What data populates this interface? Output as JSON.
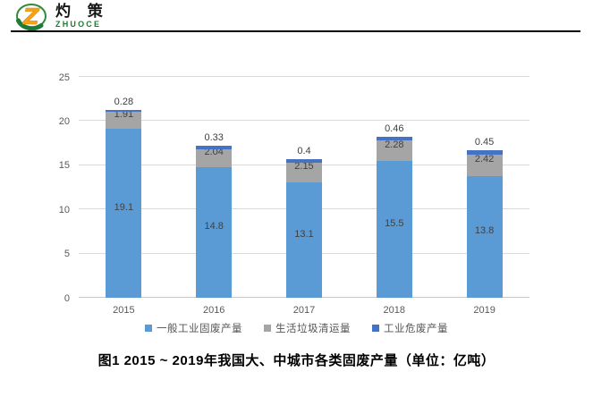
{
  "logo": {
    "cn": "灼 策",
    "en": "ZHUOCE"
  },
  "caption": "图1  2015 ~ 2019年我国大、中城市各类固废产量（单位：亿吨）",
  "colors": {
    "series_general": "#5B9BD5",
    "series_household": "#A5A5A5",
    "series_hazardous": "#4472C4",
    "gridline": "#D9D9D9",
    "axis_text": "#595959",
    "data_label": "#404040",
    "logo_green": "#1E7A34",
    "logo_orange": "#F5A21B",
    "divider": "#000000"
  },
  "chart_data": {
    "type": "bar",
    "stacked": true,
    "title": "",
    "xlabel": "",
    "ylabel": "",
    "categories": [
      "2015",
      "2016",
      "2017",
      "2018",
      "2019"
    ],
    "series": [
      {
        "name": "一般工业固废产量",
        "color": "#5B9BD5",
        "label_position": "inside",
        "values": [
          19.1,
          14.8,
          13.1,
          15.5,
          13.8
        ]
      },
      {
        "name": "生活垃圾清运量",
        "color": "#A5A5A5",
        "label_position": "inside",
        "values": [
          1.91,
          2.04,
          2.15,
          2.28,
          2.42
        ]
      },
      {
        "name": "工业危废产量",
        "color": "#4472C4",
        "label_position": "above",
        "values": [
          0.28,
          0.33,
          0.4,
          0.46,
          0.45
        ]
      }
    ],
    "yticks": [
      0,
      5,
      10,
      15,
      20,
      25
    ],
    "ylim": [
      0,
      25
    ],
    "grid": true,
    "legend_position": "bottom"
  }
}
